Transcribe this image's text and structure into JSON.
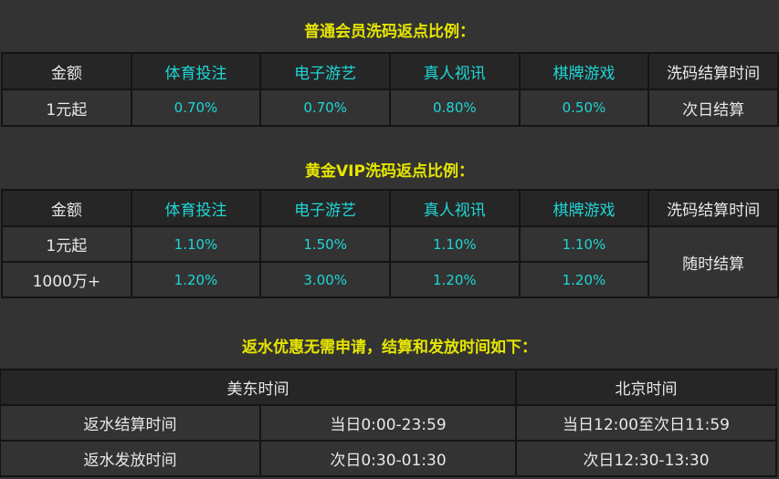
{
  "regular": {
    "title": "普通会员洗码返点比例：",
    "headers": [
      "金额",
      "体育投注",
      "电子游艺",
      "真人视讯",
      "棋牌游戏",
      "洗码结算时间"
    ],
    "rows": [
      {
        "amount": "1元起",
        "rates": [
          "0.70%",
          "0.70%",
          "0.80%",
          "0.50%"
        ]
      }
    ],
    "settle": "次日结算"
  },
  "gold": {
    "title": "黄金VIP洗码返点比例：",
    "headers": [
      "金额",
      "体育投注",
      "电子游艺",
      "真人视讯",
      "棋牌游戏",
      "洗码结算时间"
    ],
    "rows": [
      {
        "amount": "1元起",
        "rates": [
          "1.10%",
          "1.50%",
          "1.10%",
          "1.10%"
        ]
      },
      {
        "amount": "1000万+",
        "rates": [
          "1.20%",
          "3.00%",
          "1.20%",
          "1.20%"
        ]
      }
    ],
    "settle": "随时结算"
  },
  "rebate": {
    "title": "返水优惠无需申请，结算和发放时间如下：",
    "headers": [
      "美东时间",
      "北京时间"
    ],
    "rows": [
      {
        "label": "返水结算时间",
        "us": "当日0:00-23:59",
        "bj": "当日12:00至次日11:59"
      },
      {
        "label": "返水发放时间",
        "us": "次日0:30-01:30",
        "bj": "次日12:30-13:30"
      }
    ]
  },
  "colors": {
    "title": "#e6e600",
    "rate": "#1fd6d6",
    "background": "#333333"
  }
}
